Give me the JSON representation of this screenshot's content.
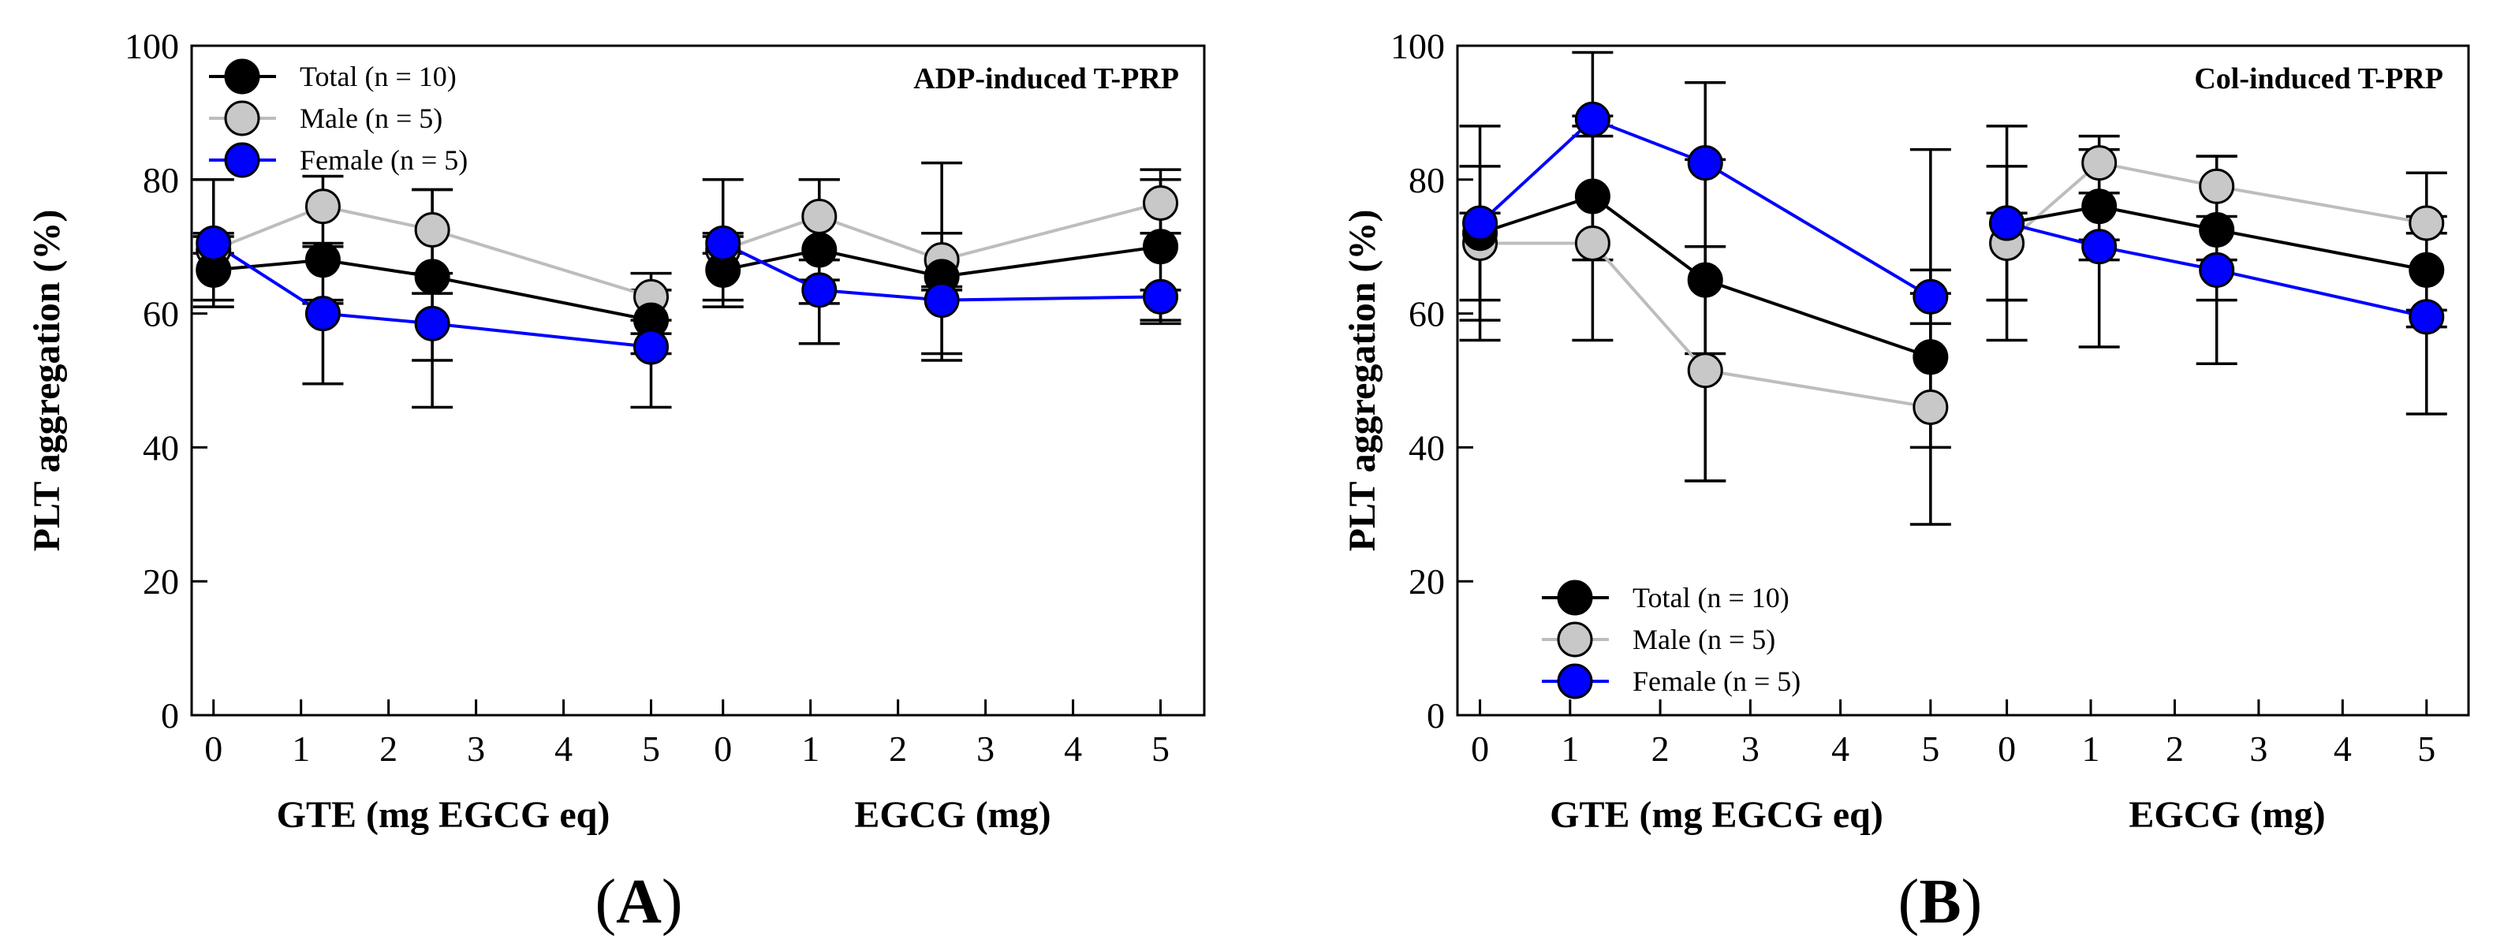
{
  "figure": {
    "label_A": {
      "open": "(",
      "letter": "A",
      "close": ")"
    },
    "label_B": {
      "open": "(",
      "letter": "B",
      "close": ")"
    }
  },
  "chart_data": [
    {
      "type": "line",
      "panel": "A",
      "title": "ADP-induced T-PRP",
      "ylabel": "PLT aggregation (%)",
      "ylim": [
        0,
        100
      ],
      "yticks": [
        0,
        20,
        40,
        60,
        80,
        100
      ],
      "legend_position": "top-left",
      "x_segments": [
        {
          "xlabel": "GTE (mg EGCG eq)",
          "xlim": [
            -0.25,
            5.5
          ],
          "xticks": [
            0,
            1,
            2,
            3,
            4,
            5
          ],
          "x": [
            0,
            1.25,
            2.5,
            5
          ]
        },
        {
          "xlabel": "EGCG (mg)",
          "xlim": [
            -0.25,
            5.5
          ],
          "xticks": [
            0,
            1,
            2,
            3,
            4,
            5
          ],
          "x": [
            0,
            1.1,
            2.5,
            5
          ]
        }
      ],
      "series": [
        {
          "name": "Total (n = 10)",
          "fill": "#000000",
          "line": "#000000",
          "segments": [
            {
              "values": [
                66.5,
                68,
                65.5,
                59
              ],
              "err_hi": [
                80,
                70.5,
                78.5,
                63.5
              ],
              "err_lo": [
                61,
                61.5,
                53,
                54
              ]
            },
            {
              "values": [
                66.5,
                69.5,
                65.5,
                70
              ],
              "err_hi": [
                80,
                80,
                82.5,
                81.5
              ],
              "err_lo": [
                61,
                61.5,
                53,
                58.5
              ]
            }
          ]
        },
        {
          "name": "Male (n = 5)",
          "fill": "#c8c8c8",
          "line": "#bdbdbd",
          "segments": [
            {
              "values": [
                69.5,
                76,
                72.5,
                62.5
              ],
              "err_hi": [
                71.5,
                80.5,
                78.5,
                66
              ],
              "err_lo": [
                62,
                70,
                66,
                59
              ]
            },
            {
              "values": [
                69.5,
                74.5,
                68,
                76.5
              ],
              "err_hi": [
                71.5,
                80,
                72,
                80
              ],
              "err_lo": [
                62,
                68,
                64,
                72
              ]
            }
          ]
        },
        {
          "name": "Female (n = 5)",
          "fill": "#0000ff",
          "line": "#0000ff",
          "segments": [
            {
              "values": [
                70.5,
                60,
                58.5,
                55
              ],
              "err_hi": [
                72,
                62,
                63,
                57
              ],
              "err_lo": [
                69,
                49.5,
                46,
                46
              ]
            },
            {
              "values": [
                70.5,
                63.5,
                62,
                62.5
              ],
              "err_hi": [
                72,
                65,
                63.5,
                63.5
              ],
              "err_lo": [
                69,
                55.5,
                54,
                59
              ]
            }
          ]
        }
      ]
    },
    {
      "type": "line",
      "panel": "B",
      "title": "Col-induced T-PRP",
      "ylabel": "PLT aggregation (%)",
      "ylim": [
        0,
        100
      ],
      "yticks": [
        0,
        20,
        40,
        60,
        80,
        100
      ],
      "legend_position": "bottom-left",
      "x_segments": [
        {
          "xlabel": "GTE (mg EGCG eq)",
          "xlim": [
            -0.25,
            5.5
          ],
          "xticks": [
            0,
            1,
            2,
            3,
            4,
            5
          ],
          "x": [
            0,
            1.25,
            2.5,
            5
          ]
        },
        {
          "xlabel": "EGCG (mg)",
          "xlim": [
            -0.25,
            5.5
          ],
          "xticks": [
            0,
            1,
            2,
            3,
            4,
            5
          ],
          "x": [
            0,
            1.1,
            2.5,
            5
          ]
        }
      ],
      "series": [
        {
          "name": "Total (n = 10)",
          "fill": "#000000",
          "line": "#000000",
          "segments": [
            {
              "values": [
                72,
                77.5,
                65,
                53.5
              ],
              "err_hi": [
                88,
                99,
                94.5,
                84.5
              ],
              "err_lo": [
                56,
                56,
                35,
                28.5
              ]
            },
            {
              "values": [
                73.5,
                76,
                72.5,
                66.5
              ],
              "err_hi": [
                88,
                84.5,
                83.5,
                81
              ],
              "err_lo": [
                56,
                55,
                52.5,
                45
              ]
            }
          ]
        },
        {
          "name": "Male (n = 5)",
          "fill": "#c8c8c8",
          "line": "#bdbdbd",
          "segments": [
            {
              "values": [
                70.5,
                70.5,
                51.5,
                46
              ],
              "err_hi": [
                82,
                86.5,
                70,
                66.5
              ],
              "err_lo": [
                59,
                68,
                35,
                40
              ]
            },
            {
              "values": [
                70.5,
                82.5,
                79,
                73.5
              ],
              "err_hi": [
                82,
                86.5,
                83.5,
                74.5
              ],
              "err_lo": [
                62,
                78,
                74.5,
                72
              ]
            }
          ]
        },
        {
          "name": "Female (n = 5)",
          "fill": "#0000ff",
          "line": "#0000ff",
          "segments": [
            {
              "values": [
                73.5,
                89,
                82.5,
                62.5
              ],
              "err_hi": [
                75,
                89.5,
                83,
                63
              ],
              "err_lo": [
                62,
                88,
                54,
                58.5
              ]
            },
            {
              "values": [
                73.5,
                70,
                66.5,
                59.5
              ],
              "err_hi": [
                75,
                71,
                68,
                60.5
              ],
              "err_lo": [
                62,
                68,
                62,
                58
              ]
            }
          ]
        }
      ]
    }
  ]
}
